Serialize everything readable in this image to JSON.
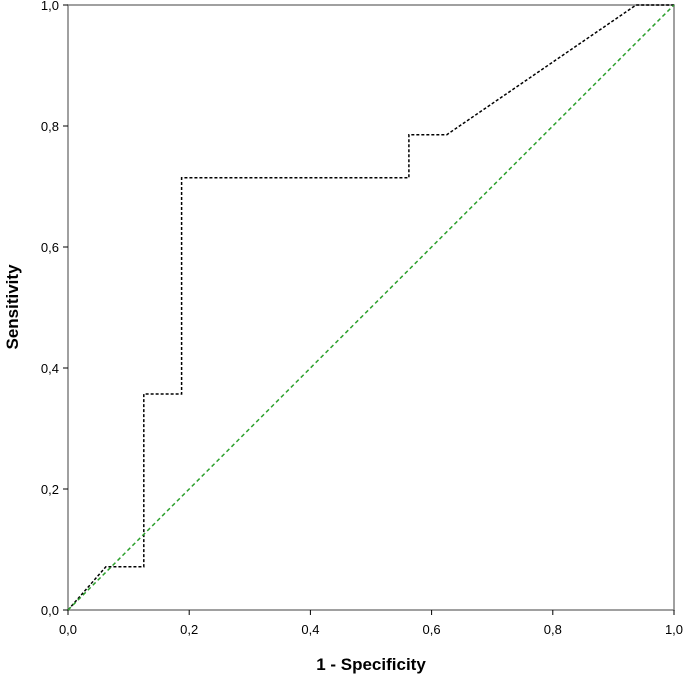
{
  "chart_data": {
    "type": "line",
    "title": "",
    "xlabel": "1 - Specificity",
    "ylabel": "Sensitivity",
    "xlim": [
      0,
      1
    ],
    "ylim": [
      0,
      1
    ],
    "x_ticks": [
      "0,0",
      "0,2",
      "0,4",
      "0,6",
      "0,8",
      "1,0"
    ],
    "y_ticks": [
      "0,0",
      "0,2",
      "0,4",
      "0,6",
      "0,8",
      "1,0"
    ],
    "grid": false,
    "series": [
      {
        "style": "dotted",
        "color": "#000000",
        "points": [
          [
            0.0,
            0.0
          ],
          [
            0.0625,
            0.0714
          ],
          [
            0.125,
            0.0714
          ],
          [
            0.125,
            0.3571
          ],
          [
            0.1875,
            0.3571
          ],
          [
            0.1875,
            0.7143
          ],
          [
            0.5625,
            0.7143
          ],
          [
            0.5625,
            0.7857
          ],
          [
            0.625,
            0.7857
          ],
          [
            0.9375,
            1.0
          ],
          [
            1.0,
            1.0
          ]
        ]
      },
      {
        "style": "dashed",
        "color": "#2ca02c",
        "points": [
          [
            0.0,
            0.0
          ],
          [
            1.0,
            1.0
          ]
        ]
      }
    ]
  }
}
